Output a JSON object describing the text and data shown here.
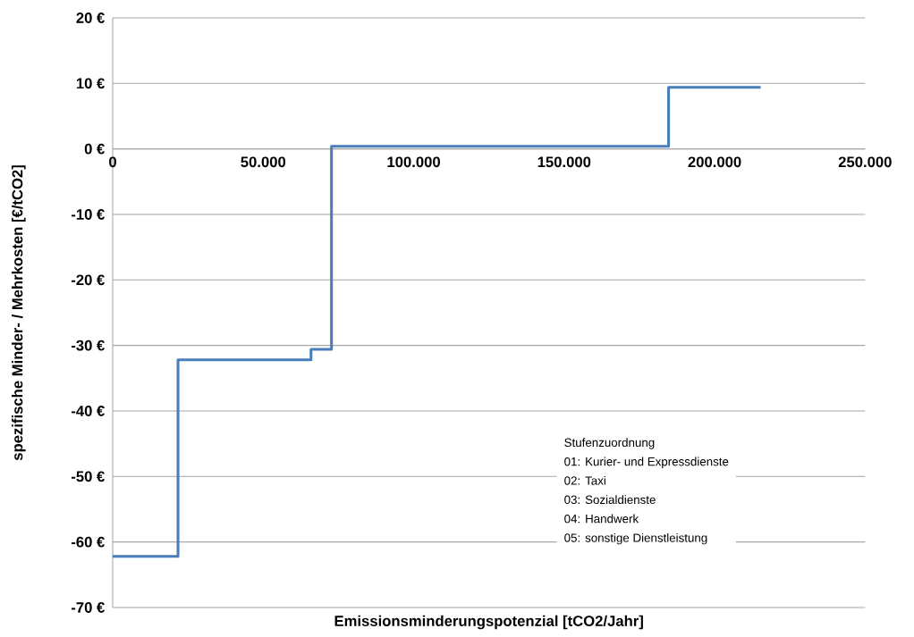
{
  "chart_data": {
    "type": "step",
    "x": [
      0,
      21700,
      65900,
      72700,
      184700,
      215300
    ],
    "values": [
      -62.2,
      -32.2,
      -30.6,
      0.4,
      9.4,
      9.4
    ],
    "color": "#4a7ebb",
    "xlim": [
      0,
      250000
    ],
    "ylim": [
      -70,
      20
    ],
    "xticks": [
      0,
      {
        "value": 50000,
        "label": "50.000"
      },
      {
        "value": 100000,
        "label": "100.000"
      },
      {
        "value": 150000,
        "label": "150.000"
      },
      {
        "value": 200000,
        "label": "200.000"
      },
      {
        "value": 250000,
        "label": "250.000"
      }
    ],
    "yticks": [
      {
        "value": -70,
        "label": "-70 €"
      },
      {
        "value": -60,
        "label": "-60 €"
      },
      {
        "value": -50,
        "label": "-50 €"
      },
      {
        "value": -40,
        "label": "-40 €"
      },
      {
        "value": -30,
        "label": "-30 €"
      },
      {
        "value": -20,
        "label": "-20 €"
      },
      {
        "value": -10,
        "label": "-10 €"
      },
      {
        "value": 0,
        "label": "0 €"
      },
      {
        "value": 10,
        "label": "10 €"
      },
      {
        "value": 20,
        "label": "20 €"
      }
    ],
    "xlabel": "Emissionsminderungspotenzial [tCO2/Jahr]",
    "ylabel": "spezifische Minder- / Mehrkosten [€/tCO2]",
    "grid": "y",
    "annotations": [
      "Stufenzuordnung",
      "01: Kurier- und Expressdienste",
      "02: Taxi",
      "03: Sozialdienste",
      "04: Handwerk",
      "05: sonstige Dienstleistung"
    ]
  }
}
